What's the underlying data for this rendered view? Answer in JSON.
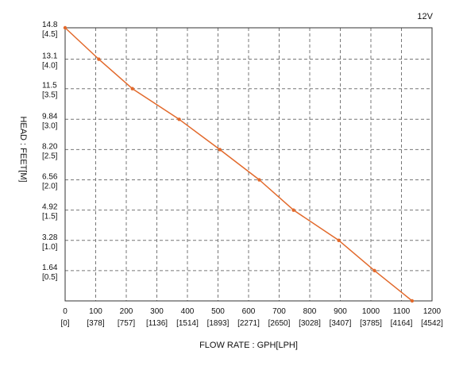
{
  "chart_data": {
    "type": "line",
    "title": "",
    "voltage_label": "12V",
    "xlabel": "FLOW RATE : GPH[LPH]",
    "ylabel": "HEAD : FEET[M]",
    "xlim": [
      0,
      1200
    ],
    "ylim": [
      0,
      14.8
    ],
    "grid": true,
    "line_color": "#e2692b",
    "x_ticks": [
      {
        "value": 0,
        "primary": "0",
        "secondary": "[0]"
      },
      {
        "value": 100,
        "primary": "100",
        "secondary": "[378]"
      },
      {
        "value": 200,
        "primary": "200",
        "secondary": "[757]"
      },
      {
        "value": 300,
        "primary": "300",
        "secondary": "[1136]"
      },
      {
        "value": 400,
        "primary": "400",
        "secondary": "[1514]"
      },
      {
        "value": 500,
        "primary": "500",
        "secondary": "[1893]"
      },
      {
        "value": 600,
        "primary": "600",
        "secondary": "[2271]"
      },
      {
        "value": 700,
        "primary": "700",
        "secondary": "[2650]"
      },
      {
        "value": 800,
        "primary": "800",
        "secondary": "[3028]"
      },
      {
        "value": 900,
        "primary": "900",
        "secondary": "[3407]"
      },
      {
        "value": 1000,
        "primary": "1000",
        "secondary": "[3785]"
      },
      {
        "value": 1100,
        "primary": "1100",
        "secondary": "[4164]"
      },
      {
        "value": 1200,
        "primary": "1200",
        "secondary": "[4542]"
      }
    ],
    "y_ticks": [
      {
        "value": 14.8,
        "primary": "14.8",
        "secondary": "[4.5]"
      },
      {
        "value": 13.1,
        "primary": "13.1",
        "secondary": "[4.0]"
      },
      {
        "value": 11.5,
        "primary": "11.5",
        "secondary": "[3.5]"
      },
      {
        "value": 9.84,
        "primary": "9.84",
        "secondary": "[3.0]"
      },
      {
        "value": 8.2,
        "primary": "8.20",
        "secondary": "[2.5]"
      },
      {
        "value": 6.56,
        "primary": "6.56",
        "secondary": "[2.0]"
      },
      {
        "value": 4.92,
        "primary": "4.92",
        "secondary": "[1.5]"
      },
      {
        "value": 3.28,
        "primary": "3.28",
        "secondary": "[1.0]"
      },
      {
        "value": 1.64,
        "primary": "1.64",
        "secondary": "[0.5]"
      }
    ],
    "series": [
      {
        "points": [
          {
            "x": 0,
            "y": 14.8
          },
          {
            "x": 110,
            "y": 13.1
          },
          {
            "x": 220,
            "y": 11.5
          },
          {
            "x": 373,
            "y": 9.84
          },
          {
            "x": 506,
            "y": 8.2
          },
          {
            "x": 635,
            "y": 6.56
          },
          {
            "x": 747,
            "y": 4.92
          },
          {
            "x": 895,
            "y": 3.28
          },
          {
            "x": 1012,
            "y": 1.64
          },
          {
            "x": 1135,
            "y": 0
          }
        ]
      }
    ]
  }
}
